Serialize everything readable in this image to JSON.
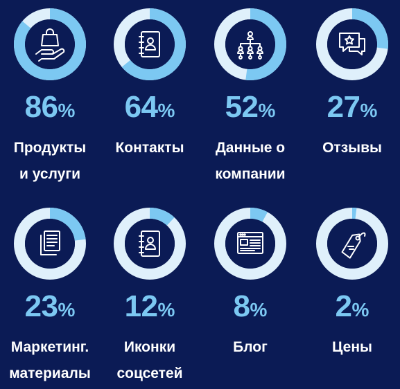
{
  "chart_data": {
    "type": "donut-grid",
    "unit": "%",
    "colors": {
      "background": "#0b1b55",
      "ring_track": "#dff0fb",
      "ring_fill": "#7cc8f2",
      "inner": "#0b1b55",
      "icon": "#ffffff",
      "value": "#7cc8f2",
      "label": "#ffffff"
    },
    "items": [
      {
        "value": 86,
        "label_lines": [
          "Продукты",
          "и услуги"
        ],
        "icon": "hand-shopping-bag-icon"
      },
      {
        "value": 64,
        "label_lines": [
          "Контакты"
        ],
        "icon": "address-book-icon"
      },
      {
        "value": 52,
        "label_lines": [
          "Данные о",
          "компании"
        ],
        "icon": "org-chart-icon"
      },
      {
        "value": 27,
        "label_lines": [
          "Отзывы"
        ],
        "icon": "star-chat-icon"
      },
      {
        "value": 23,
        "label_lines": [
          "Маркетинг.",
          "материалы"
        ],
        "icon": "documents-icon"
      },
      {
        "value": 12,
        "label_lines": [
          "Иконки",
          "соцсетей"
        ],
        "icon": "contacts-book-icon"
      },
      {
        "value": 8,
        "label_lines": [
          "Блог"
        ],
        "icon": "browser-window-icon"
      },
      {
        "value": 2,
        "label_lines": [
          "Цены"
        ],
        "icon": "price-tag-icon"
      }
    ]
  }
}
